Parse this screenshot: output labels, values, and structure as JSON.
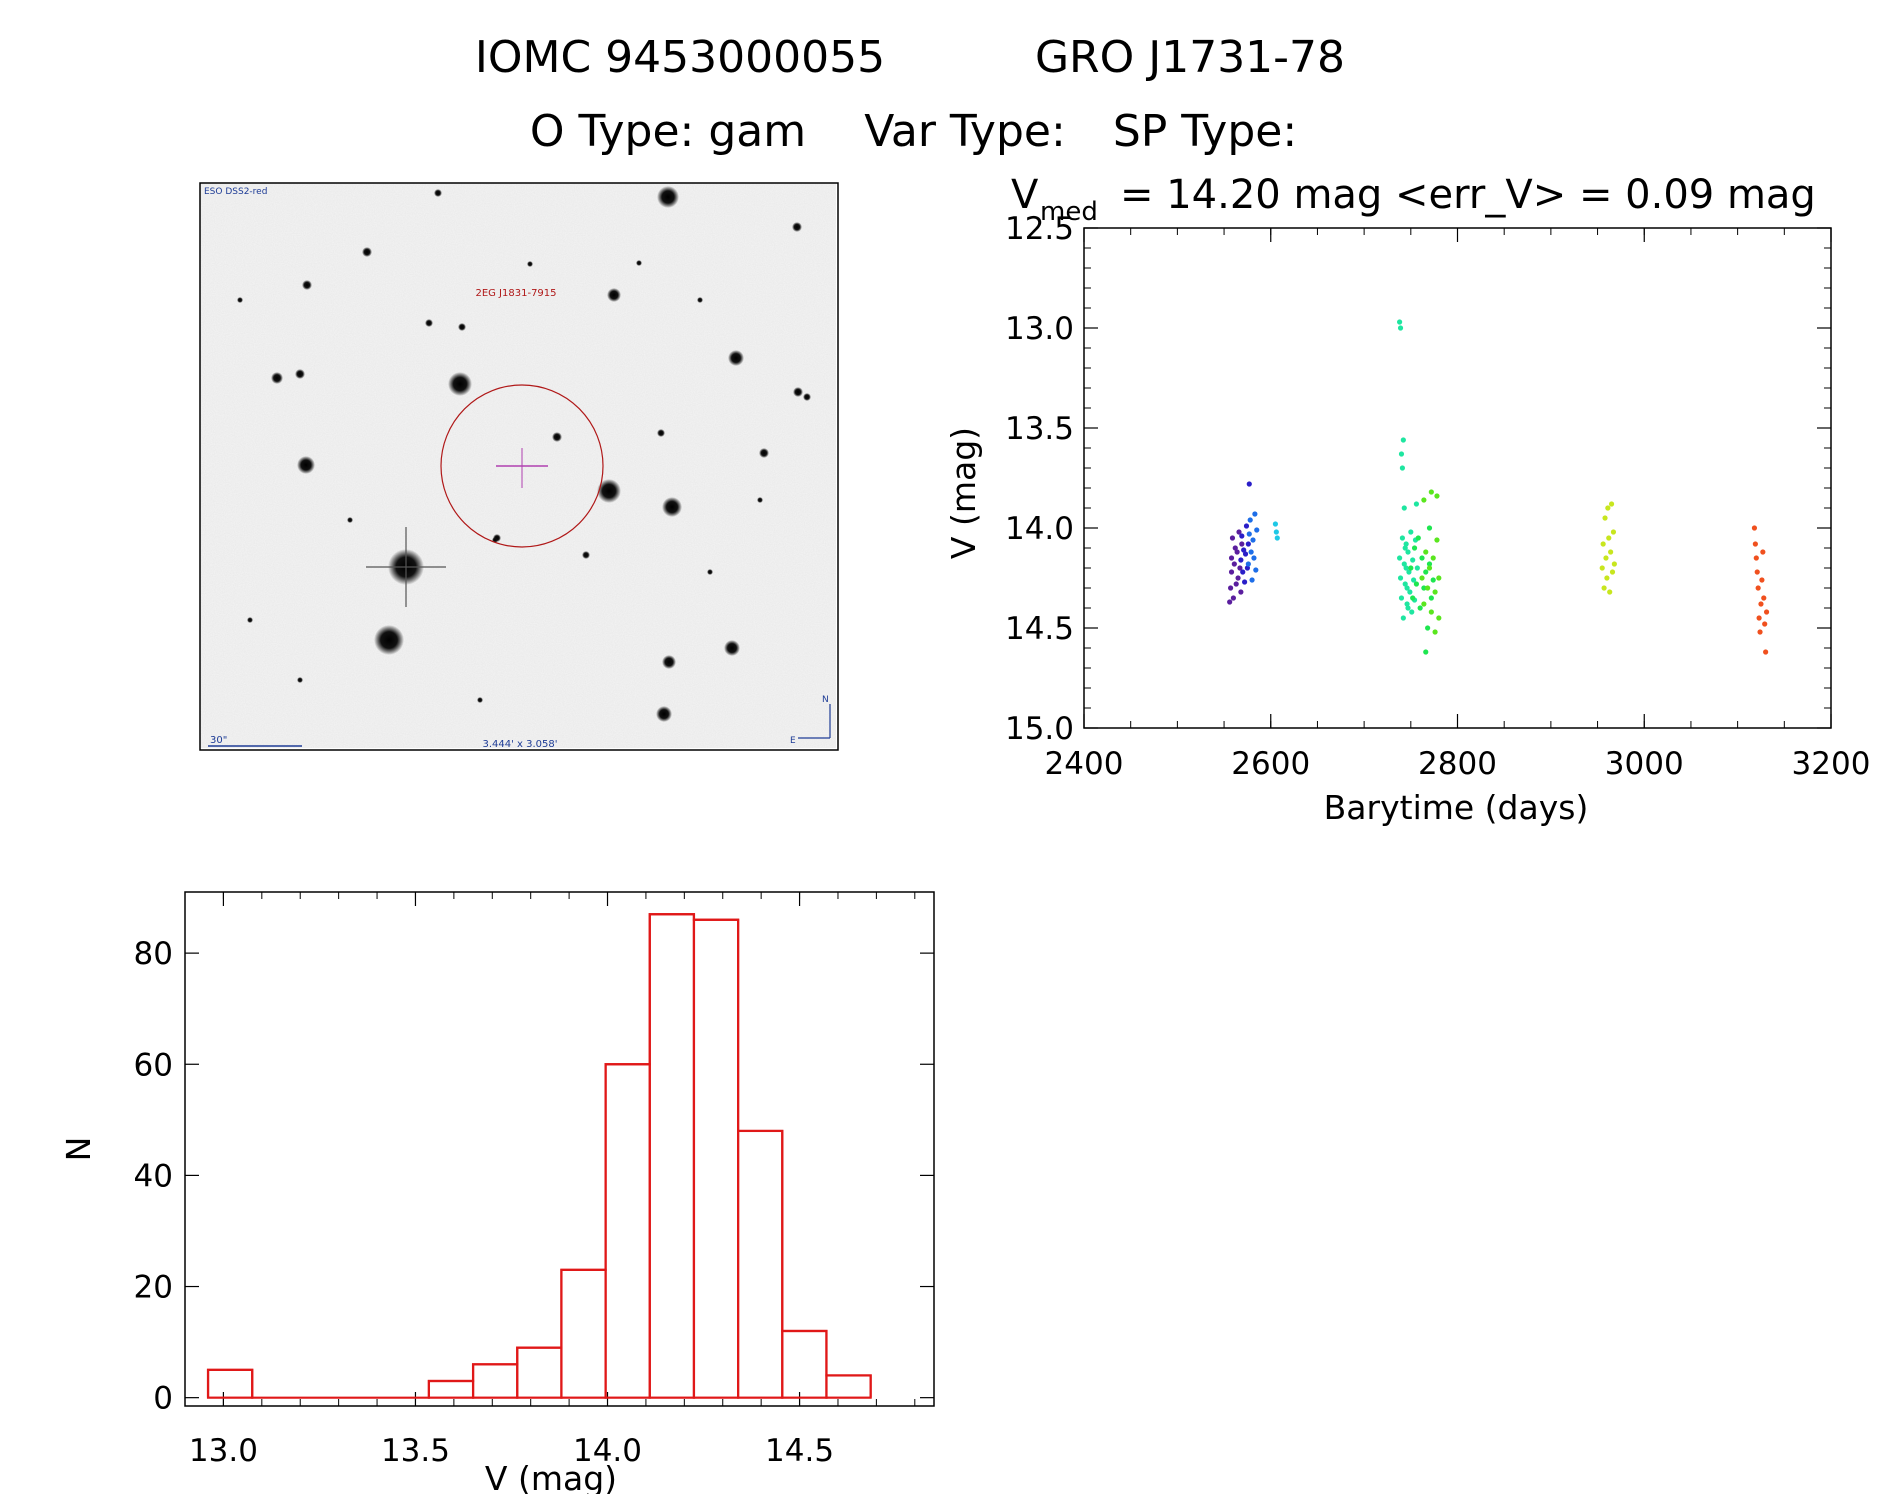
{
  "header": {
    "line1_id": "IOMC 9453000055",
    "line1_name": "GRO J1731-78",
    "line2_otype": "O Type: gam",
    "line2_vartype": "Var Type:",
    "line2_sptype": "SP Type:"
  },
  "finder": {
    "survey_label": "ESO DSS2-red",
    "target_label": "2EG J1831-7915",
    "scale_label": "30\"",
    "fov_label": "3.444' x 3.058'",
    "compass_n": "N",
    "compass_e": "E"
  },
  "chart_data": [
    {
      "type": "scatter",
      "title_symbol": "V",
      "title_subscript": "med",
      "title_rest": "= 14.20 mag <err_V> = 0.09 mag",
      "xlabel": "Barytime (days)",
      "ylabel": "V (mag)",
      "xlim": [
        2400,
        3200
      ],
      "ylim": [
        12.5,
        15.0
      ],
      "y_inverted": true,
      "x_ticks": [
        "2400",
        "2600",
        "2800",
        "3000",
        "3200"
      ],
      "y_ticks": [
        "12.5",
        "13.0",
        "13.5",
        "14.0",
        "14.5",
        "15.0"
      ],
      "grid": false,
      "point_color_scheme": "rainbow by time (purple to red)",
      "groups": [
        {
          "color": "#5a1e9e",
          "points": [
            [
              2556,
              14.37
            ],
            [
              2557,
              14.3
            ],
            [
              2558,
              14.15
            ],
            [
              2558,
              14.22
            ],
            [
              2559,
              14.05
            ],
            [
              2560,
              14.35
            ],
            [
              2561,
              14.18
            ],
            [
              2562,
              14.1
            ],
            [
              2563,
              14.28
            ],
            [
              2564,
              14.12
            ],
            [
              2565,
              14.25
            ],
            [
              2566,
              14.02
            ],
            [
              2567,
              14.2
            ],
            [
              2568,
              14.32
            ],
            [
              2569,
              14.08
            ]
          ]
        },
        {
          "color": "#2a1ec8",
          "points": [
            [
              2568,
              14.16
            ],
            [
              2569,
              14.04
            ],
            [
              2570,
              14.22
            ],
            [
              2571,
              14.11
            ],
            [
              2572,
              14.27
            ],
            [
              2573,
              14.13
            ],
            [
              2574,
              13.99
            ],
            [
              2575,
              14.2
            ],
            [
              2576,
              14.08
            ],
            [
              2577,
              13.78
            ]
          ]
        },
        {
          "color": "#1e6ee8",
          "points": [
            [
              2576,
              14.18
            ],
            [
              2577,
              14.03
            ],
            [
              2578,
              13.96
            ],
            [
              2579,
              14.12
            ],
            [
              2580,
              14.26
            ],
            [
              2581,
              14.06
            ],
            [
              2582,
              14.15
            ],
            [
              2583,
              13.93
            ],
            [
              2584,
              14.21
            ],
            [
              2585,
              14.01
            ]
          ]
        },
        {
          "color": "#1ec8e6",
          "points": [
            [
              2605,
              13.98
            ],
            [
              2606,
              14.02
            ],
            [
              2607,
              14.05
            ]
          ]
        },
        {
          "color": "#1ee6a0",
          "points": [
            [
              2738,
              12.97
            ],
            [
              2739,
              13.0
            ],
            [
              2740,
              13.63
            ],
            [
              2741,
              13.7
            ],
            [
              2742,
              13.56
            ],
            [
              2743,
              13.9
            ],
            [
              2744,
              14.1
            ],
            [
              2745,
              14.2
            ],
            [
              2746,
              14.3
            ],
            [
              2747,
              14.4
            ],
            [
              2738,
              14.15
            ],
            [
              2739,
              14.25
            ],
            [
              2740,
              14.35
            ],
            [
              2741,
              14.05
            ],
            [
              2742,
              14.45
            ],
            [
              2743,
              14.18
            ],
            [
              2744,
              14.28
            ],
            [
              2745,
              14.08
            ],
            [
              2746,
              14.38
            ],
            [
              2747,
              14.12
            ],
            [
              2748,
              14.22
            ],
            [
              2749,
              14.32
            ],
            [
              2750,
              14.02
            ],
            [
              2751,
              14.42
            ],
            [
              2752,
              14.16
            ],
            [
              2753,
              14.26
            ],
            [
              2754,
              14.36
            ],
            [
              2755,
              14.06
            ],
            [
              2756,
              13.88
            ],
            [
              2757,
              14.2
            ]
          ]
        },
        {
          "color": "#1ee650",
          "points": [
            [
              2750,
              14.2
            ],
            [
              2752,
              14.35
            ],
            [
              2754,
              14.1
            ],
            [
              2756,
              14.28
            ],
            [
              2758,
              14.05
            ],
            [
              2760,
              14.4
            ],
            [
              2762,
              14.15
            ],
            [
              2764,
              14.3
            ],
            [
              2766,
              14.22
            ],
            [
              2768,
              14.5
            ],
            [
              2770,
              14.18
            ],
            [
              2772,
              14.35
            ],
            [
              2766,
              14.62
            ],
            [
              2770,
              14.0
            ],
            [
              2774,
              14.26
            ]
          ]
        },
        {
          "color": "#5ae61e",
          "points": [
            [
              2762,
              14.25
            ],
            [
              2764,
              14.38
            ],
            [
              2766,
              14.12
            ],
            [
              2768,
              14.3
            ],
            [
              2770,
              14.2
            ],
            [
              2772,
              14.42
            ],
            [
              2774,
              14.15
            ],
            [
              2776,
              14.32
            ],
            [
              2778,
              14.06
            ],
            [
              2780,
              14.45
            ],
            [
              2772,
              13.82
            ],
            [
              2778,
              13.84
            ],
            [
              2764,
              13.86
            ],
            [
              2780,
              14.25
            ],
            [
              2776,
              14.52
            ]
          ]
        },
        {
          "color": "#c8e61e",
          "points": [
            [
              2955,
              14.2
            ],
            [
              2956,
              14.08
            ],
            [
              2957,
              14.3
            ],
            [
              2958,
              13.95
            ],
            [
              2959,
              14.15
            ],
            [
              2960,
              14.25
            ],
            [
              2961,
              13.9
            ],
            [
              2962,
              14.05
            ],
            [
              2963,
              14.32
            ],
            [
              2964,
              14.12
            ],
            [
              2965,
              13.88
            ],
            [
              2966,
              14.22
            ],
            [
              2967,
              14.02
            ],
            [
              2968,
              14.18
            ]
          ]
        },
        {
          "color": "#f0501e",
          "points": [
            [
              3118,
              14.0
            ],
            [
              3119,
              14.08
            ],
            [
              3120,
              14.15
            ],
            [
              3121,
              14.22
            ],
            [
              3122,
              14.3
            ],
            [
              3123,
              14.45
            ],
            [
              3124,
              14.52
            ],
            [
              3125,
              14.38
            ],
            [
              3126,
              14.26
            ],
            [
              3127,
              14.12
            ],
            [
              3128,
              14.35
            ],
            [
              3129,
              14.48
            ],
            [
              3130,
              14.62
            ],
            [
              3131,
              14.42
            ]
          ]
        }
      ]
    },
    {
      "type": "bar",
      "subtype": "histogram",
      "xlabel": "V (mag)",
      "ylabel": "N",
      "xlim": [
        12.9,
        14.85
      ],
      "ylim": [
        -1.5,
        91
      ],
      "x_ticks": [
        "13.0",
        "13.5",
        "14.0",
        "14.5"
      ],
      "y_ticks": [
        "0",
        "20",
        "40",
        "60",
        "80"
      ],
      "bar_color": "#e01818",
      "bins": [
        {
          "lo": 12.96,
          "hi": 13.075,
          "count": 5
        },
        {
          "lo": 13.075,
          "hi": 13.19,
          "count": 0
        },
        {
          "lo": 13.19,
          "hi": 13.305,
          "count": 0
        },
        {
          "lo": 13.305,
          "hi": 13.42,
          "count": 0
        },
        {
          "lo": 13.42,
          "hi": 13.535,
          "count": 0
        },
        {
          "lo": 13.535,
          "hi": 13.65,
          "count": 3
        },
        {
          "lo": 13.65,
          "hi": 13.765,
          "count": 6
        },
        {
          "lo": 13.765,
          "hi": 13.88,
          "count": 9
        },
        {
          "lo": 13.88,
          "hi": 13.995,
          "count": 23
        },
        {
          "lo": 13.995,
          "hi": 14.11,
          "count": 60
        },
        {
          "lo": 14.11,
          "hi": 14.225,
          "count": 87
        },
        {
          "lo": 14.225,
          "hi": 14.34,
          "count": 86
        },
        {
          "lo": 14.34,
          "hi": 14.455,
          "count": 48
        },
        {
          "lo": 14.455,
          "hi": 14.57,
          "count": 12
        },
        {
          "lo": 14.57,
          "hi": 14.685,
          "count": 4
        }
      ]
    }
  ]
}
